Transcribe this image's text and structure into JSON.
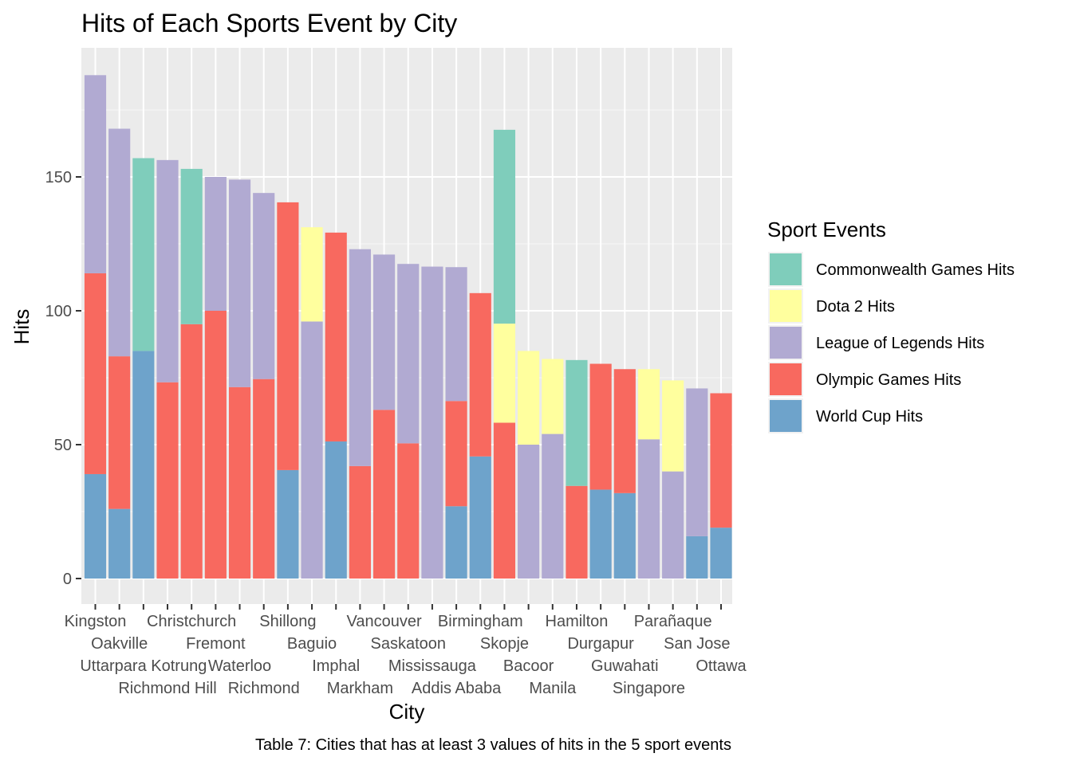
{
  "chart_data": {
    "type": "bar",
    "stacked": true,
    "title": "Hits of Each Sports Event by City",
    "xlabel": "City",
    "ylabel": "Hits",
    "caption": "Table 7: Cities that has at least 3 values of hits in the 5 sport events",
    "legend_title": "Sport Events",
    "legend_position": "right",
    "grid": true,
    "ylim": [
      0,
      196
    ],
    "yticks": [
      0,
      50,
      100,
      150
    ],
    "categories": [
      "Kingston",
      "Oakville",
      "Uttarpara Kotrung",
      "Richmond Hill",
      "Christchurch",
      "Fremont",
      "Waterloo",
      "Richmond",
      "Shillong",
      "Baguio",
      "Imphal",
      "Markham",
      "Vancouver",
      "Saskatoon",
      "Mississauga",
      "Addis Ababa",
      "Birmingham",
      "Skopje",
      "Bacoor",
      "Manila",
      "Hamilton",
      "Durgapur",
      "Guwahati",
      "Singapore",
      "Parañaque",
      "San Jose",
      "Ottawa"
    ],
    "series": [
      {
        "name": "World Cup Hits",
        "color": "#6ea3cb",
        "values": [
          39,
          26,
          85,
          0,
          0,
          0,
          0,
          0,
          40.5,
          0,
          51.2,
          0,
          0,
          0,
          0,
          27,
          45.6,
          0,
          0,
          0,
          0,
          33.2,
          31.9,
          0,
          0,
          15.8,
          19
        ]
      },
      {
        "name": "Olympic Games Hits",
        "color": "#f8695f",
        "values": [
          75,
          57,
          0,
          73.3,
          95,
          100,
          71.5,
          74.5,
          100,
          0,
          78,
          42,
          63,
          50.5,
          0,
          39.3,
          61,
          58.2,
          0,
          0,
          34.6,
          47,
          46.3,
          0,
          0,
          0,
          50.2
        ]
      },
      {
        "name": "League of Legends Hits",
        "color": "#b1aad2",
        "values": [
          74,
          85,
          0,
          83,
          0,
          50,
          77.5,
          69.5,
          0,
          96,
          0,
          81,
          58,
          67,
          116.5,
          50,
          0,
          0,
          50,
          54,
          0,
          0,
          0,
          52,
          40,
          55.2,
          0
        ]
      },
      {
        "name": "Dota 2 Hits",
        "color": "#ffff9e",
        "values": [
          0,
          0,
          0,
          0,
          0,
          0,
          0,
          0,
          0,
          35.2,
          0,
          0,
          0,
          0,
          0,
          0,
          0,
          37,
          35,
          28,
          0,
          0,
          0,
          26.2,
          34,
          0,
          0
        ]
      },
      {
        "name": "Commonwealth Games Hits",
        "color": "#7fcdbb",
        "values": [
          0,
          0,
          72,
          0,
          58,
          0,
          0,
          0,
          0,
          0,
          0,
          0,
          0,
          0,
          0,
          0,
          0,
          72.4,
          0,
          0,
          47,
          0,
          0,
          0,
          0,
          0,
          0
        ]
      }
    ],
    "legend_order": [
      "Commonwealth Games Hits",
      "Dota 2 Hits",
      "League of Legends Hits",
      "Olympic Games Hits",
      "World Cup Hits"
    ]
  }
}
